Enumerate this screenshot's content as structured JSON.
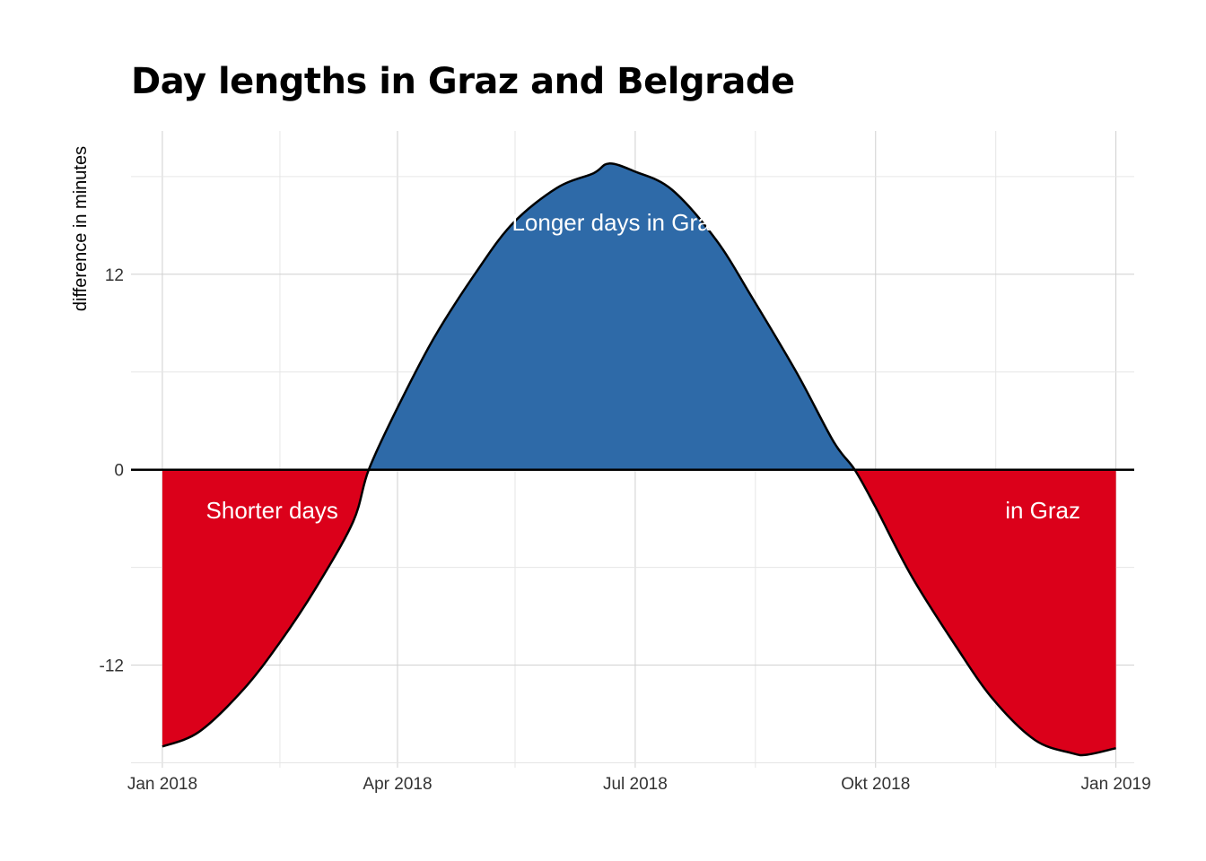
{
  "chart_data": {
    "type": "area",
    "title": "Day lengths in Graz and Belgrade",
    "xlabel": "",
    "ylabel": "difference in minutes",
    "x_ticks": [
      "Jan 2018",
      "Apr 2018",
      "Jul 2018",
      "Okt 2018",
      "Jan 2019"
    ],
    "y_ticks": [
      "-12",
      "0",
      "12"
    ],
    "xlim": [
      "2017-12-20",
      "2019-01-08"
    ],
    "ylim": [
      -18.3,
      20.8
    ],
    "grid": true,
    "legend": "none",
    "colors": {
      "positive": "#2E6AA8",
      "negative": "#DB001A",
      "line": "#000000",
      "zero_line": "#000000"
    },
    "annotations": [
      "Shorter days",
      "Longer days in Graz",
      "in Graz"
    ],
    "series": [
      {
        "x": [
          "2018-01-01",
          "2018-01-15",
          "2018-02-01",
          "2018-02-15",
          "2018-03-01",
          "2018-03-15",
          "2018-03-21",
          "2018-04-01",
          "2018-04-15",
          "2018-05-01",
          "2018-05-15",
          "2018-06-01",
          "2018-06-15",
          "2018-06-21",
          "2018-07-01",
          "2018-07-15",
          "2018-08-01",
          "2018-08-15",
          "2018-09-01",
          "2018-09-15",
          "2018-09-23",
          "2018-10-01",
          "2018-10-15",
          "2018-11-01",
          "2018-11-15",
          "2018-12-01",
          "2018-12-15",
          "2018-12-21",
          "2019-01-01"
        ],
        "values": [
          -17.0,
          -16.1,
          -13.5,
          -10.6,
          -7.2,
          -3.2,
          0.0,
          3.8,
          8.1,
          12.1,
          15.1,
          17.3,
          18.2,
          18.8,
          18.3,
          17.2,
          14.1,
          10.5,
          5.9,
          1.7,
          0.0,
          -2.3,
          -6.6,
          -10.9,
          -14.1,
          -16.6,
          -17.4,
          -17.5,
          -17.1
        ]
      }
    ]
  }
}
